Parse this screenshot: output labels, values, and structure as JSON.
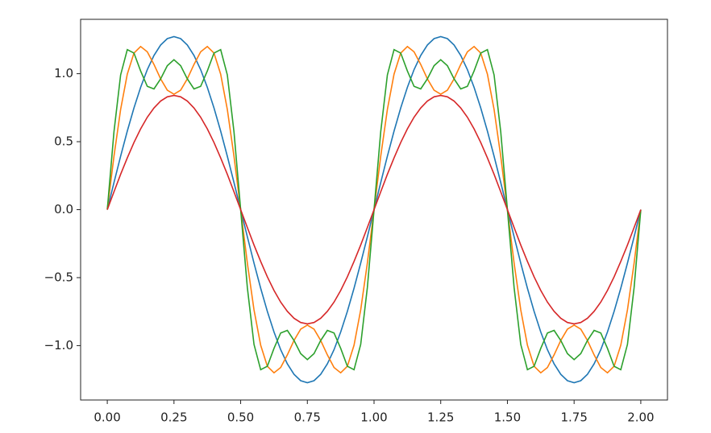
{
  "chart_data": {
    "type": "line",
    "x": [
      0,
      0.025,
      0.05,
      0.075,
      0.1,
      0.125,
      0.15,
      0.175,
      0.2,
      0.225,
      0.25,
      0.275,
      0.3,
      0.325,
      0.35,
      0.375,
      0.4,
      0.425,
      0.45,
      0.475,
      0.5,
      0.525,
      0.55,
      0.575,
      0.6,
      0.625,
      0.65,
      0.675,
      0.7,
      0.725,
      0.75,
      0.775,
      0.8,
      0.825,
      0.85,
      0.875,
      0.9,
      0.925,
      0.95,
      0.975,
      1,
      1.025,
      1.05,
      1.075,
      1.1,
      1.125,
      1.15,
      1.175,
      1.2,
      1.225,
      1.25,
      1.275,
      1.3,
      1.325,
      1.35,
      1.375,
      1.4,
      1.425,
      1.45,
      1.475,
      1.5,
      1.525,
      1.55,
      1.575,
      1.6,
      1.625,
      1.65,
      1.675,
      1.7,
      1.725,
      1.75,
      1.775,
      1.8,
      1.825,
      1.85,
      1.875,
      1.9,
      1.925,
      1.95,
      1.975,
      2
    ],
    "series": [
      {
        "color": "#1f77b4",
        "values": [
          0,
          0.199,
          0.393,
          0.578,
          0.748,
          0.9,
          1.03,
          1.134,
          1.211,
          1.258,
          1.273,
          1.258,
          1.211,
          1.134,
          1.03,
          0.9,
          0.748,
          0.578,
          0.393,
          0.199,
          0,
          -0.199,
          -0.393,
          -0.578,
          -0.748,
          -0.9,
          -1.03,
          -1.134,
          -1.211,
          -1.258,
          -1.273,
          -1.258,
          -1.211,
          -1.134,
          -1.03,
          -0.9,
          -0.748,
          -0.578,
          -0.393,
          -0.199,
          0,
          0.199,
          0.393,
          0.578,
          0.748,
          0.9,
          1.03,
          1.134,
          1.211,
          1.258,
          1.273,
          1.258,
          1.211,
          1.134,
          1.03,
          0.9,
          0.748,
          0.578,
          0.393,
          0.199,
          0,
          -0.199,
          -0.393,
          -0.578,
          -0.748,
          -0.9,
          -1.03,
          -1.134,
          -1.211,
          -1.258,
          -1.273,
          -1.258,
          -1.211,
          -1.134,
          -1.03,
          -0.9,
          -0.748,
          -0.578,
          -0.393,
          -0.199,
          0
        ]
      },
      {
        "color": "#ff7f0e",
        "values": [
          0,
          0.392,
          0.737,
          0.997,
          1.152,
          1.2,
          1.161,
          1.068,
          0.962,
          0.879,
          0.849,
          0.879,
          0.962,
          1.068,
          1.161,
          1.2,
          1.152,
          0.997,
          0.737,
          0.392,
          0,
          -0.392,
          -0.737,
          -0.997,
          -1.152,
          -1.2,
          -1.161,
          -1.068,
          -0.962,
          -0.879,
          -0.849,
          -0.879,
          -0.962,
          -1.068,
          -1.161,
          -1.2,
          -1.152,
          -0.997,
          -0.737,
          -0.392,
          0,
          0.392,
          0.737,
          0.997,
          1.152,
          1.2,
          1.161,
          1.068,
          0.962,
          0.879,
          0.849,
          0.879,
          0.962,
          1.068,
          1.161,
          1.2,
          1.152,
          0.997,
          0.737,
          0.392,
          0,
          -0.392,
          -0.737,
          -0.997,
          -1.152,
          -1.2,
          -1.161,
          -1.068,
          -0.962,
          -0.879,
          -0.849,
          -0.879,
          -0.962,
          -1.068,
          -1.161,
          -1.2,
          -1.152,
          -0.997,
          -0.737,
          -0.392,
          0
        ]
      },
      {
        "color": "#2ca02c",
        "values": [
          0,
          0.572,
          0.991,
          1.177,
          1.152,
          1.02,
          0.907,
          0.888,
          0.962,
          1.059,
          1.103,
          1.059,
          0.962,
          0.888,
          0.907,
          1.02,
          1.152,
          1.177,
          0.991,
          0.572,
          0,
          -0.572,
          -0.991,
          -1.177,
          -1.152,
          -1.02,
          -0.907,
          -0.888,
          -0.962,
          -1.059,
          -1.103,
          -1.059,
          -0.962,
          -0.888,
          -0.907,
          -1.02,
          -1.152,
          -1.177,
          -0.991,
          -0.572,
          0,
          0.572,
          0.991,
          1.177,
          1.152,
          1.02,
          0.907,
          0.888,
          0.962,
          1.059,
          1.103,
          1.059,
          0.962,
          0.888,
          0.907,
          1.02,
          1.152,
          1.177,
          0.991,
          0.572,
          0,
          -0.572,
          -0.991,
          -1.177,
          -1.152,
          -1.02,
          -0.907,
          -0.888,
          -0.962,
          -1.059,
          -1.103,
          -1.059,
          -0.962,
          -0.888,
          -0.907,
          -1.02,
          -1.152,
          -1.177,
          -0.991,
          -0.572,
          0
        ]
      },
      {
        "color": "#d62728",
        "values": [
          0,
          0.131,
          0.26,
          0.381,
          0.494,
          0.594,
          0.68,
          0.748,
          0.799,
          0.83,
          0.84,
          0.83,
          0.799,
          0.748,
          0.68,
          0.594,
          0.494,
          0.381,
          0.26,
          0.131,
          0,
          -0.131,
          -0.26,
          -0.381,
          -0.494,
          -0.594,
          -0.68,
          -0.748,
          -0.799,
          -0.83,
          -0.84,
          -0.83,
          -0.799,
          -0.748,
          -0.68,
          -0.594,
          -0.494,
          -0.381,
          -0.26,
          -0.131,
          0,
          0.131,
          0.26,
          0.381,
          0.494,
          0.594,
          0.68,
          0.748,
          0.799,
          0.83,
          0.84,
          0.83,
          0.799,
          0.748,
          0.68,
          0.594,
          0.494,
          0.381,
          0.26,
          0.131,
          0,
          -0.131,
          -0.26,
          -0.381,
          -0.494,
          -0.594,
          -0.68,
          -0.748,
          -0.799,
          -0.83,
          -0.84,
          -0.83,
          -0.799,
          -0.748,
          -0.68,
          -0.594,
          -0.494,
          -0.381,
          -0.26,
          -0.131,
          0
        ]
      }
    ],
    "xlim": [
      -0.1,
      2.1
    ],
    "ylim": [
      -1.4,
      1.4
    ],
    "xticks": [
      {
        "value": 0,
        "label": "0.00"
      },
      {
        "value": 0.25,
        "label": "0.25"
      },
      {
        "value": 0.5,
        "label": "0.50"
      },
      {
        "value": 0.75,
        "label": "0.75"
      },
      {
        "value": 1,
        "label": "1.00"
      },
      {
        "value": 1.25,
        "label": "1.25"
      },
      {
        "value": 1.5,
        "label": "1.50"
      },
      {
        "value": 1.75,
        "label": "1.75"
      },
      {
        "value": 2,
        "label": "2.00"
      }
    ],
    "yticks": [
      {
        "value": -1,
        "label": "−1.0"
      },
      {
        "value": -0.5,
        "label": "−0.5"
      },
      {
        "value": 0,
        "label": "0.0"
      },
      0.5,
      {
        "value": 1,
        "label": "1.0"
      }
    ],
    "grid": false
  }
}
